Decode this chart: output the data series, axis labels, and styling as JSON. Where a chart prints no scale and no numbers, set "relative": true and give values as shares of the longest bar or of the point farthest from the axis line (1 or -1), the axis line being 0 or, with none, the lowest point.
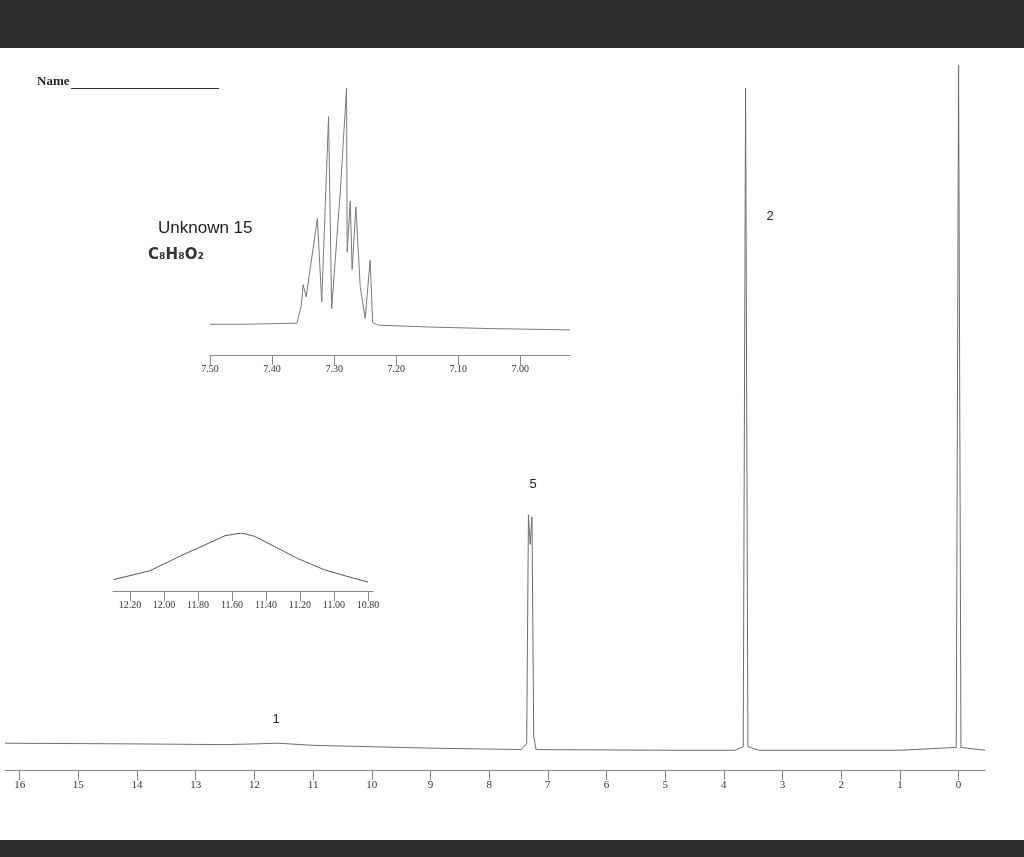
{
  "chart_data": [
    {
      "type": "line",
      "title": "Unknown 15",
      "subtitle": "C₈H₈O₂",
      "relative": true,
      "marker": "none",
      "color": "#6e6e6e",
      "annotations": [
        "Name",
        "1",
        "5",
        "2"
      ],
      "xlim": [
        16.25,
        -0.45
      ],
      "xticks": [
        16,
        15,
        14,
        13,
        12,
        11,
        10,
        9,
        8,
        7,
        6,
        5,
        4,
        3,
        2,
        1,
        0
      ],
      "x": [
        16.25,
        14,
        12.5,
        12,
        11.6,
        11,
        10,
        9,
        7.45,
        7.36,
        7.33,
        7.3,
        7.27,
        7.24,
        7.2,
        5,
        3.8,
        3.67,
        3.63,
        3.59,
        3.4,
        1,
        0.04,
        0,
        -0.04,
        -0.45
      ],
      "values": [
        0.038,
        0.037,
        0.036,
        0.037,
        0.038,
        0.035,
        0.033,
        0.031,
        0.029,
        0.038,
        0.362,
        0.32,
        0.359,
        0.048,
        0.029,
        0.028,
        0.028,
        0.033,
        0.967,
        0.033,
        0.028,
        0.028,
        0.032,
        1,
        0.032,
        0.028
      ]
    },
    {
      "type": "line",
      "relative": true,
      "marker": "none",
      "color": "#7a7a7a",
      "xlim": [
        7.5,
        6.92
      ],
      "xticks": [
        {
          "value": 7.5,
          "label": "7.50"
        },
        {
          "value": 7.4,
          "label": "7.40"
        },
        {
          "value": 7.3,
          "label": "7.30"
        },
        {
          "value": 7.2,
          "label": "7.20"
        },
        {
          "value": 7.1,
          "label": "7.10"
        },
        {
          "value": 7.0,
          "label": "7.00"
        }
      ],
      "x": [
        7.5,
        7.45,
        7.36,
        7.353,
        7.35,
        7.345,
        7.327,
        7.32,
        7.309,
        7.304,
        7.29,
        7.28,
        7.279,
        7.274,
        7.271,
        7.265,
        7.258,
        7.25,
        7.242,
        7.238,
        7.23,
        7.15,
        7.05,
        6.92
      ],
      "values": [
        0.115,
        0.115,
        0.119,
        0.184,
        0.263,
        0.218,
        0.512,
        0.199,
        0.893,
        0.173,
        0.615,
        1,
        0.385,
        0.577,
        0.32,
        0.555,
        0.257,
        0.137,
        0.355,
        0.122,
        0.112,
        0.105,
        0.099,
        0.094
      ]
    },
    {
      "type": "line",
      "relative": true,
      "marker": "none",
      "color": "#555555",
      "xlim": [
        12.3,
        10.77
      ],
      "xticks": [
        {
          "value": 12.2,
          "label": "12.20"
        },
        {
          "value": 12.0,
          "label": "12.00"
        },
        {
          "value": 11.8,
          "label": "11.80"
        },
        {
          "value": 11.6,
          "label": "11.60"
        },
        {
          "value": 11.4,
          "label": "11.40"
        },
        {
          "value": 11.2,
          "label": "11.20"
        },
        {
          "value": 11.0,
          "label": "11.00"
        },
        {
          "value": 10.8,
          "label": "10.80"
        }
      ],
      "x": [
        12.297,
        12.084,
        11.891,
        11.736,
        11.64,
        11.544,
        11.466,
        11.35,
        11.215,
        11.06,
        10.925,
        10.8
      ],
      "values": [
        0.196,
        0.348,
        0.621,
        0.825,
        0.954,
        1,
        0.942,
        0.767,
        0.563,
        0.37,
        0.254,
        0.155
      ]
    }
  ]
}
